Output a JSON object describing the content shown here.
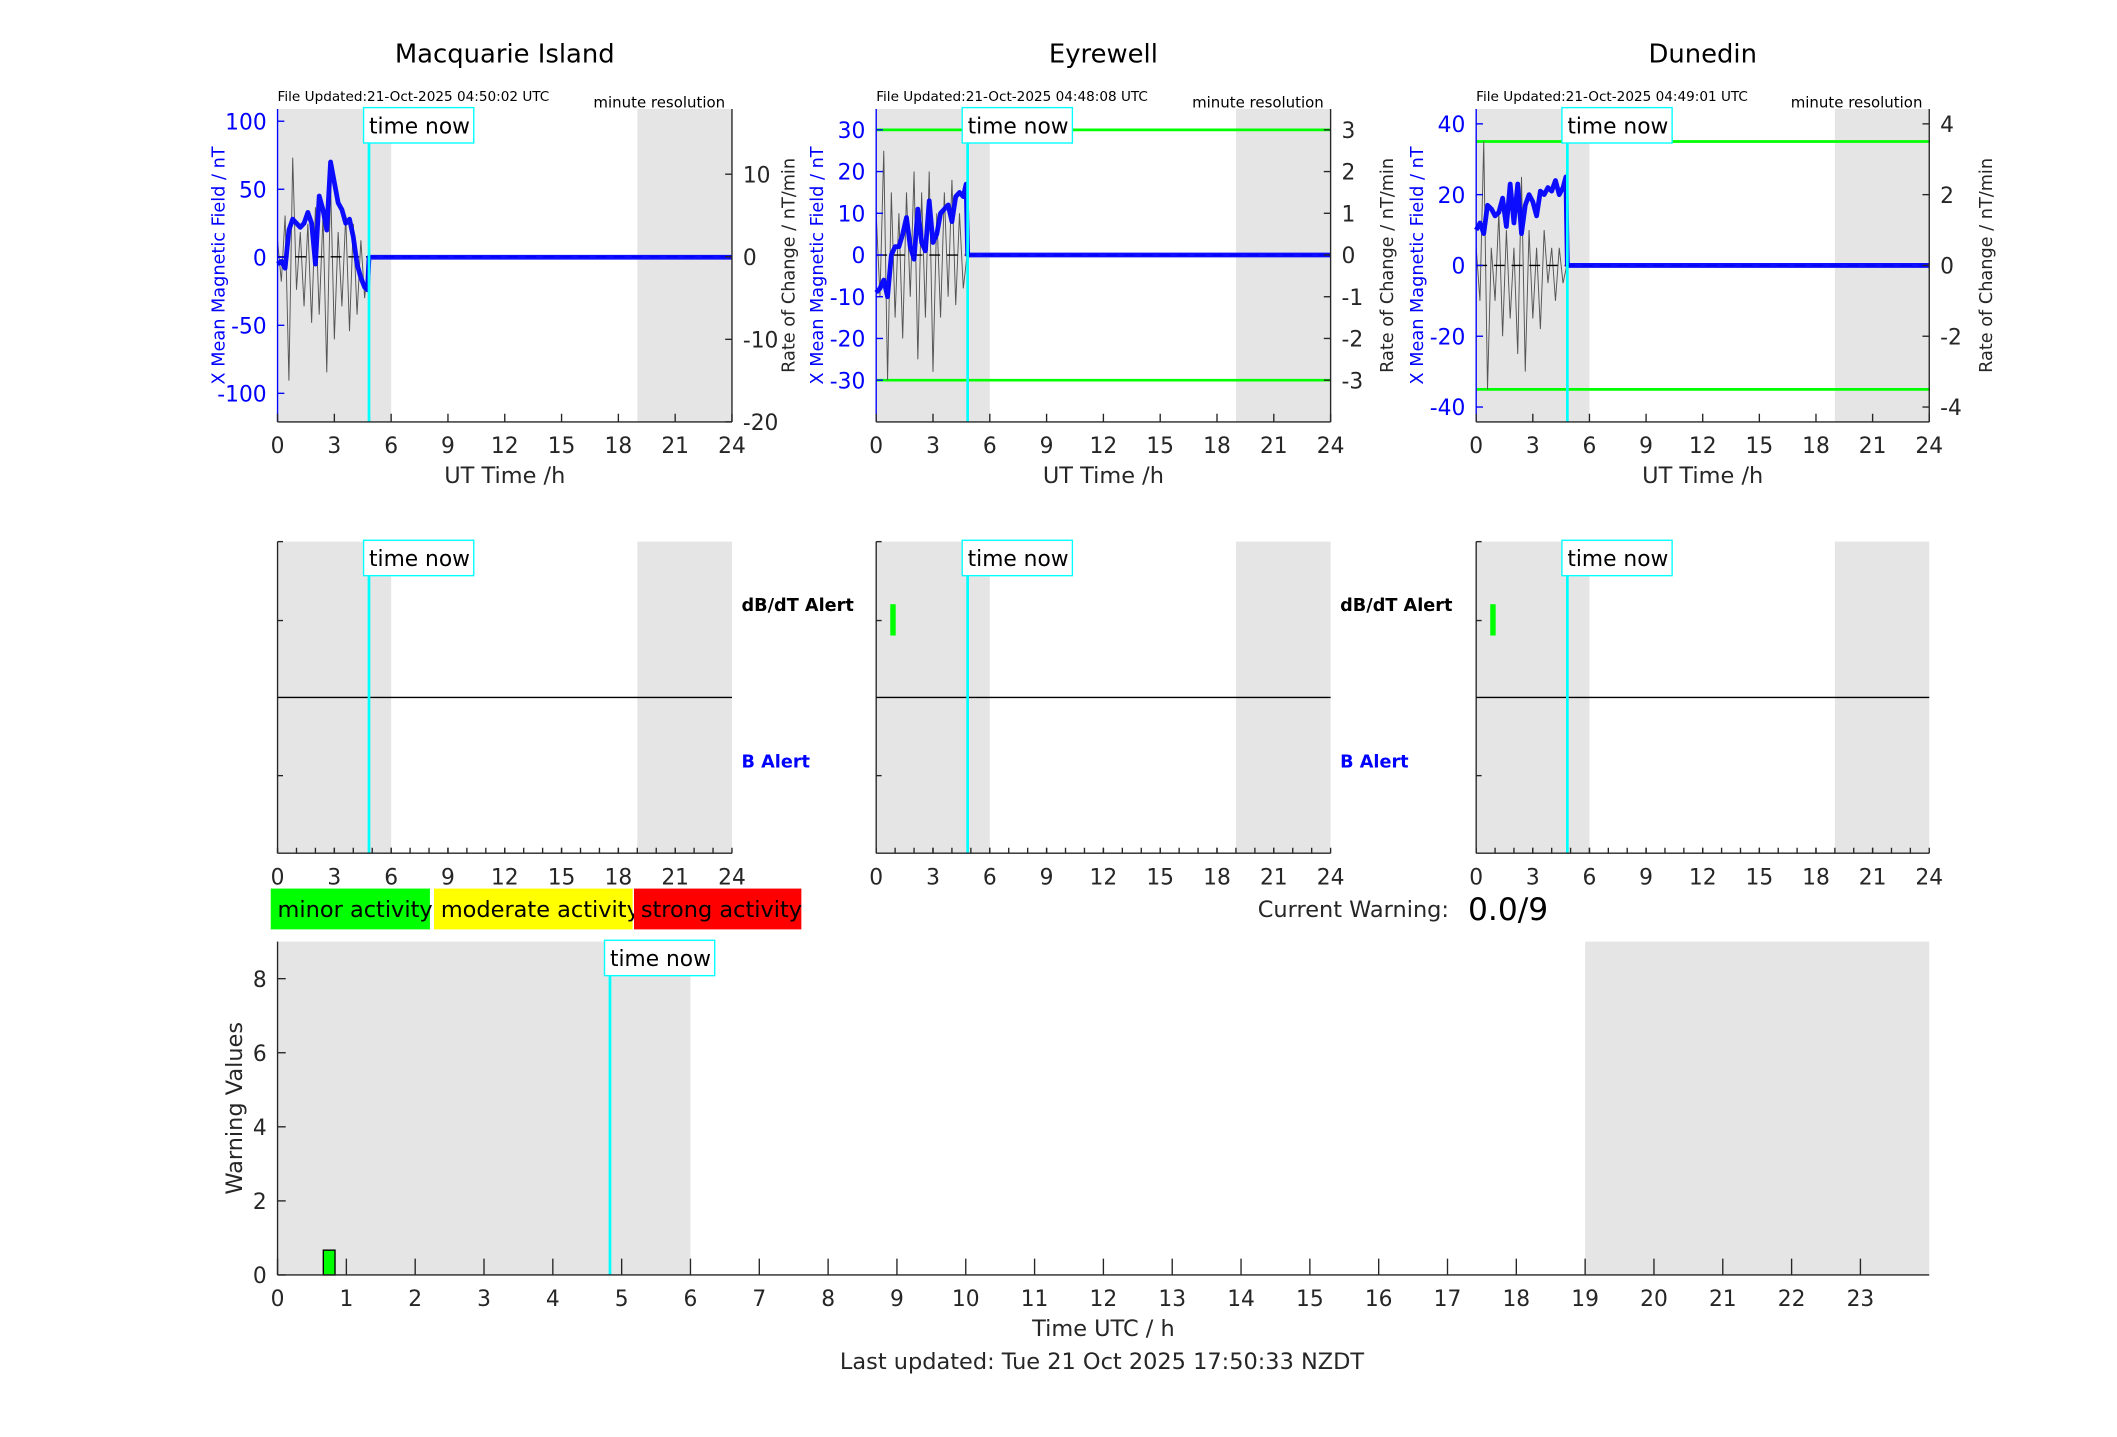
{
  "colors": {
    "field": "#0000ff",
    "rate": "#555555",
    "threshold": "#00ff00",
    "time_now": "#00ffff",
    "shade": "#e5e5e5",
    "alert": "#00ff00"
  },
  "time_now_label": "time now",
  "chart_data": [
    {
      "type": "line",
      "title": "Macquarie Island",
      "file_updated": "File Updated:21-Oct-2025 04:50:02 UTC",
      "resolution": "minute resolution",
      "xlabel": "UT Time /h",
      "ylabel_left": "X Mean Magnetic Field / nT",
      "ylabel_right": "Rate of Change / nT/min",
      "xlim": [
        0,
        24
      ],
      "xticks": [
        0,
        3,
        6,
        9,
        12,
        15,
        18,
        21,
        24
      ],
      "ylim_left": [
        -121,
        109
      ],
      "yticks_left": [
        -100,
        -50,
        0,
        50,
        100
      ],
      "ylim_right": [
        -20,
        17.9
      ],
      "yticks_right": [
        -20,
        -10,
        0,
        10
      ],
      "thresholds_right": [],
      "shaded": [
        [
          0,
          6
        ],
        [
          19,
          24
        ]
      ],
      "time_now": 4.83,
      "field_series": {
        "x": [
          0,
          0.2,
          0.4,
          0.6,
          0.8,
          1.0,
          1.2,
          1.4,
          1.6,
          1.8,
          2.0,
          2.2,
          2.4,
          2.6,
          2.8,
          3.0,
          3.2,
          3.4,
          3.6,
          3.8,
          4.0,
          4.2,
          4.4,
          4.6,
          4.75,
          4.83,
          24
        ],
        "y": [
          -5,
          -3,
          -8,
          20,
          28,
          25,
          22,
          25,
          33,
          25,
          -5,
          45,
          35,
          20,
          70,
          55,
          40,
          35,
          25,
          28,
          15,
          -5,
          -15,
          -22,
          -24,
          0,
          0
        ]
      },
      "rate_series": {
        "x": [
          0,
          0.2,
          0.4,
          0.6,
          0.8,
          1.0,
          1.2,
          1.4,
          1.6,
          1.8,
          2.0,
          2.2,
          2.4,
          2.6,
          2.8,
          3.0,
          3.2,
          3.4,
          3.6,
          3.8,
          4.0,
          4.2,
          4.4,
          4.6,
          4.8
        ],
        "y": [
          2,
          -3,
          5,
          -15,
          12,
          -4,
          3,
          -6,
          4,
          -8,
          6,
          -7,
          5,
          -14,
          9,
          -10,
          3,
          -6,
          5,
          -9,
          4,
          -7,
          2,
          -5,
          0
        ]
      }
    },
    {
      "type": "line",
      "title": "Eyrewell",
      "file_updated": "File Updated:21-Oct-2025 04:48:08 UTC",
      "resolution": "minute resolution",
      "xlabel": "UT Time /h",
      "ylabel_left": "X Mean Magnetic Field / nT",
      "ylabel_right": "Rate of Change / nT/min",
      "xlim": [
        0,
        24
      ],
      "xticks": [
        0,
        3,
        6,
        9,
        12,
        15,
        18,
        21,
        24
      ],
      "ylim_left": [
        -40,
        35
      ],
      "yticks_left": [
        -30,
        -20,
        -10,
        0,
        10,
        20,
        30
      ],
      "ylim_right": [
        -4,
        3.5
      ],
      "yticks_right": [
        -3,
        -2,
        -1,
        0,
        1,
        2,
        3
      ],
      "thresholds_right": [
        3,
        -3
      ],
      "shaded": [
        [
          0,
          6
        ],
        [
          19,
          24
        ]
      ],
      "time_now": 4.83,
      "field_series": {
        "x": [
          0,
          0.2,
          0.4,
          0.6,
          0.8,
          1.0,
          1.2,
          1.4,
          1.6,
          1.8,
          2.0,
          2.2,
          2.4,
          2.6,
          2.8,
          3.0,
          3.2,
          3.4,
          3.6,
          3.8,
          4.0,
          4.2,
          4.4,
          4.6,
          4.75,
          4.83,
          24
        ],
        "y": [
          -9,
          -8,
          -6,
          -10,
          0,
          2,
          2,
          5,
          9,
          2,
          -1,
          11,
          3,
          1,
          13,
          3,
          5,
          10,
          11,
          12,
          8,
          14,
          15,
          14,
          17,
          0,
          0
        ]
      },
      "rate_series": {
        "x": [
          0,
          0.2,
          0.4,
          0.6,
          0.8,
          1.0,
          1.2,
          1.4,
          1.6,
          1.8,
          2.0,
          2.2,
          2.4,
          2.6,
          2.8,
          3.0,
          3.2,
          3.4,
          3.6,
          3.8,
          4.0,
          4.2,
          4.4,
          4.6,
          4.8
        ],
        "y": [
          1,
          -1,
          2.5,
          -3,
          1.5,
          -1.5,
          1,
          -2,
          1.5,
          -1,
          2,
          -2.5,
          1.5,
          -1.5,
          2,
          -2.8,
          1,
          -1.5,
          1.5,
          -1,
          1.8,
          -1.2,
          1,
          -0.8,
          0
        ]
      }
    },
    {
      "type": "line",
      "title": "Dunedin",
      "file_updated": "File Updated:21-Oct-2025 04:49:01 UTC",
      "resolution": "minute resolution",
      "xlabel": "UT Time /h",
      "ylabel_left": "X Mean Magnetic Field / nT",
      "ylabel_right": "Rate of Change / nT/min",
      "xlim": [
        0,
        24
      ],
      "xticks": [
        0,
        3,
        6,
        9,
        12,
        15,
        18,
        21,
        24
      ],
      "ylim_left": [
        -44.2,
        44.2
      ],
      "yticks_left": [
        -40,
        -20,
        0,
        20,
        40
      ],
      "ylim_right": [
        -4.42,
        4.42
      ],
      "yticks_right": [
        -4,
        -2,
        0,
        2,
        4
      ],
      "thresholds_right": [
        3.5,
        -3.5
      ],
      "shaded": [
        [
          0,
          6
        ],
        [
          19,
          24
        ]
      ],
      "time_now": 4.83,
      "field_series": {
        "x": [
          0,
          0.2,
          0.4,
          0.6,
          0.8,
          1.0,
          1.2,
          1.4,
          1.6,
          1.8,
          2.0,
          2.2,
          2.4,
          2.6,
          2.8,
          3.0,
          3.2,
          3.4,
          3.6,
          3.8,
          4.0,
          4.2,
          4.4,
          4.6,
          4.75,
          4.83,
          24
        ],
        "y": [
          10,
          12,
          9,
          17,
          16,
          14,
          15,
          19,
          11,
          23,
          12,
          23,
          9,
          17,
          20,
          18,
          14,
          21,
          20,
          22,
          21,
          24,
          20,
          22,
          25,
          0,
          0
        ]
      },
      "rate_series": {
        "x": [
          0,
          0.2,
          0.4,
          0.6,
          0.8,
          1.0,
          1.2,
          1.4,
          1.6,
          1.8,
          2.0,
          2.2,
          2.4,
          2.6,
          2.8,
          3.0,
          3.2,
          3.4,
          3.6,
          3.8,
          4.0,
          4.2,
          4.4,
          4.6,
          4.8
        ],
        "y": [
          0.5,
          -1,
          3.5,
          -3.5,
          0.5,
          -1,
          1.5,
          -2,
          1,
          -1.5,
          0.5,
          -2.5,
          2.5,
          -3,
          1,
          -1.5,
          0.5,
          -1.8,
          1,
          -0.5,
          0.5,
          -1,
          0.5,
          -0.5,
          0
        ]
      }
    },
    {
      "type": "timeline",
      "station": "Macquarie Island",
      "xlim": [
        0,
        24
      ],
      "xticks": [
        0,
        3,
        6,
        9,
        12,
        15,
        18,
        21,
        24
      ],
      "rows": [
        "dB/dT Alert",
        "B Alert"
      ],
      "shaded": [
        [
          0,
          6
        ],
        [
          19,
          24
        ]
      ],
      "time_now": 4.83,
      "events": []
    },
    {
      "type": "timeline",
      "station": "Eyrewell",
      "xlim": [
        0,
        24
      ],
      "xticks": [
        0,
        3,
        6,
        9,
        12,
        15,
        18,
        21,
        24
      ],
      "rows": [
        "dB/dT Alert",
        "B Alert"
      ],
      "shaded": [
        [
          0,
          6
        ],
        [
          19,
          24
        ]
      ],
      "time_now": 4.83,
      "events": [
        {
          "row": 0,
          "start": 0.6,
          "end": 0.8
        }
      ]
    },
    {
      "type": "timeline",
      "station": "Dunedin",
      "xlim": [
        0,
        24
      ],
      "xticks": [
        0,
        3,
        6,
        9,
        12,
        15,
        18,
        21,
        24
      ],
      "rows": [
        "dB/dT Alert",
        "B Alert"
      ],
      "shaded": [
        [
          0,
          6
        ],
        [
          19,
          24
        ]
      ],
      "time_now": 4.83,
      "events": [
        {
          "row": 0,
          "start": 0.6,
          "end": 0.8
        }
      ]
    },
    {
      "type": "bar",
      "xlabel": "Time UTC / h",
      "ylabel": "Warning Values",
      "xlim": [
        0,
        24
      ],
      "xticks": [
        0,
        1,
        2,
        3,
        4,
        5,
        6,
        7,
        8,
        9,
        10,
        11,
        12,
        13,
        14,
        15,
        16,
        17,
        18,
        19,
        20,
        21,
        22,
        23
      ],
      "ylim": [
        0,
        9
      ],
      "yticks": [
        0,
        2,
        4,
        6,
        8
      ],
      "shaded": [
        [
          0,
          6
        ],
        [
          19,
          24
        ]
      ],
      "time_now": 4.83,
      "bars": [
        {
          "x": 0.75,
          "width": 0.17,
          "value": 0.67,
          "color": "#00ff00"
        }
      ]
    }
  ],
  "legend": [
    {
      "label": "minor activity",
      "color": "#00ff00"
    },
    {
      "label": "moderate activity",
      "color": "#ffff00"
    },
    {
      "label": "strong activity",
      "color": "#ff0000"
    }
  ],
  "current_warning": {
    "label": "Current Warning:",
    "value": "0.0/9"
  },
  "footer": {
    "last_updated": "Last updated: Tue 21 Oct 2025 17:50:33 NZDT"
  }
}
